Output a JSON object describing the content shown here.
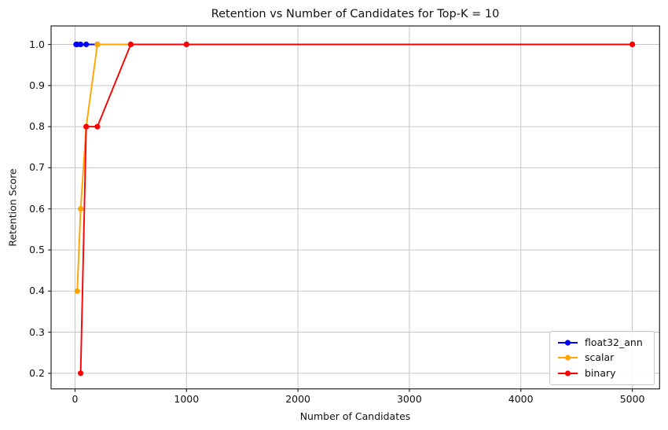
{
  "chart_data": {
    "type": "line",
    "title": "Retention vs Number of Candidates for Top-K = 10",
    "xlabel": "Number of Candidates",
    "ylabel": "Retention Score",
    "xlim": [
      -215,
      5245
    ],
    "ylim": [
      0.162,
      1.045
    ],
    "xticks": [
      0,
      1000,
      2000,
      3000,
      4000,
      5000
    ],
    "yticks": [
      0.2,
      0.3,
      0.4,
      0.5,
      0.6,
      0.7,
      0.8,
      0.9,
      1.0
    ],
    "grid": true,
    "legend_position": "lower right",
    "series": [
      {
        "name": "float32_ann",
        "color": "#0000ff",
        "x": [
          10,
          20,
          50,
          100,
          200,
          500,
          1000,
          5000
        ],
        "y": [
          1.0,
          1.0,
          1.0,
          1.0,
          1.0,
          1.0,
          1.0,
          1.0
        ]
      },
      {
        "name": "scalar",
        "color": "#ffa500",
        "x": [
          20,
          50,
          100,
          200,
          500,
          1000,
          5000
        ],
        "y": [
          0.4,
          0.6,
          0.8,
          1.0,
          1.0,
          1.0,
          1.0
        ]
      },
      {
        "name": "binary",
        "color": "#ff0000",
        "x": [
          50,
          100,
          200,
          500,
          1000,
          5000
        ],
        "y": [
          0.2,
          0.8,
          0.8,
          1.0,
          1.0,
          1.0
        ]
      }
    ]
  },
  "colors": {
    "background": "#ffffff",
    "grid": "#c6c6c6",
    "spine": "#262626",
    "tick": "#262626",
    "text": "#111111",
    "legend_border": "#c8c8c8"
  }
}
